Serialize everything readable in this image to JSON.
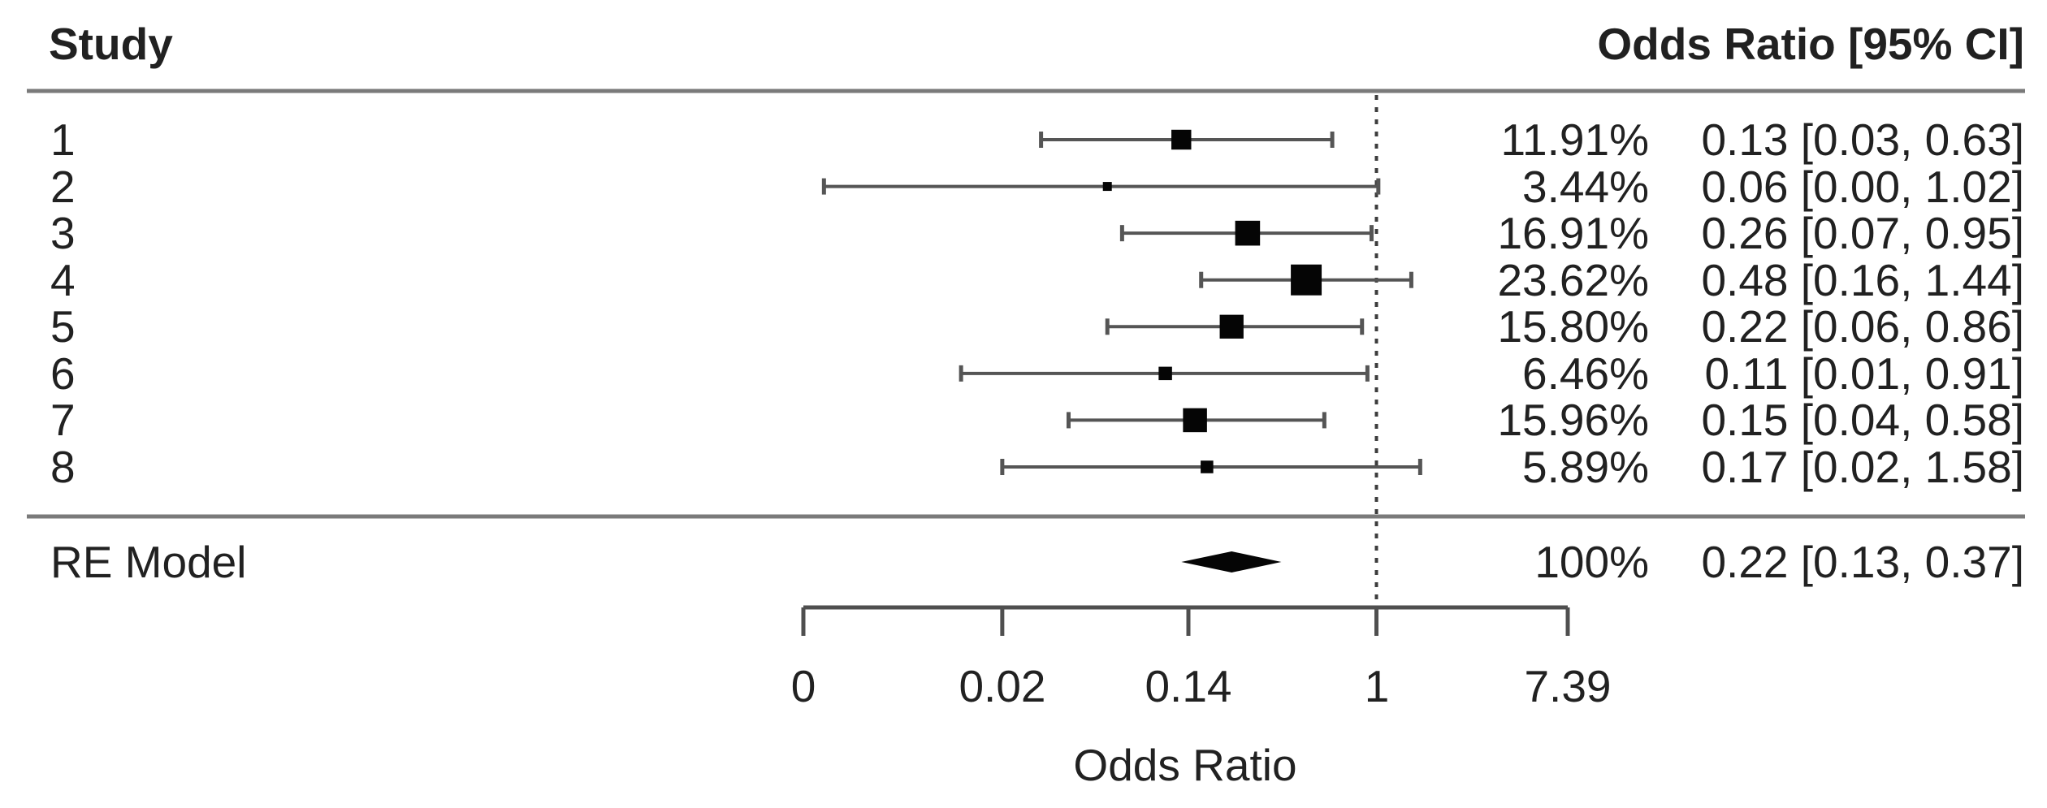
{
  "header": {
    "study": "Study",
    "or_ci": "Odds Ratio [95% CI]"
  },
  "chart_data": {
    "type": "forest",
    "x_scale": "log",
    "xlabel": "Odds Ratio",
    "x_ticks": [
      {
        "label": "0",
        "value": 0.0025
      },
      {
        "label": "0.02",
        "value": 0.02
      },
      {
        "label": "0.14",
        "value": 0.14
      },
      {
        "label": "1",
        "value": 1
      },
      {
        "label": "7.39",
        "value": 7.39
      }
    ],
    "reference_value": 1,
    "studies": [
      {
        "label": "1",
        "weight_pct": "11.91%",
        "weight": 11.91,
        "or": 0.13,
        "ci_low": 0.03,
        "ci_high": 0.63,
        "annotation": "0.13 [0.03, 0.63]"
      },
      {
        "label": "2",
        "weight_pct": "3.44%",
        "weight": 3.44,
        "or": 0.06,
        "ci_low": 0.0,
        "ci_high": 1.02,
        "ci_low_plot": 0.0031,
        "annotation": "0.06 [0.00, 1.02]"
      },
      {
        "label": "3",
        "weight_pct": "16.91%",
        "weight": 16.91,
        "or": 0.26,
        "ci_low": 0.07,
        "ci_high": 0.95,
        "annotation": "0.26 [0.07, 0.95]"
      },
      {
        "label": "4",
        "weight_pct": "23.62%",
        "weight": 23.62,
        "or": 0.48,
        "ci_low": 0.16,
        "ci_high": 1.44,
        "annotation": "0.48 [0.16, 1.44]"
      },
      {
        "label": "5",
        "weight_pct": "15.80%",
        "weight": 15.8,
        "or": 0.22,
        "ci_low": 0.06,
        "ci_high": 0.86,
        "annotation": "0.22 [0.06, 0.86]"
      },
      {
        "label": "6",
        "weight_pct": "6.46%",
        "weight": 6.46,
        "or": 0.11,
        "ci_low": 0.01,
        "ci_high": 0.91,
        "ci_low_plot": 0.013,
        "annotation": "0.11 [0.01, 0.91]"
      },
      {
        "label": "7",
        "weight_pct": "15.96%",
        "weight": 15.96,
        "or": 0.15,
        "ci_low": 0.04,
        "ci_high": 0.58,
        "annotation": "0.15 [0.04, 0.58]"
      },
      {
        "label": "8",
        "weight_pct": "5.89%",
        "weight": 5.89,
        "or": 0.17,
        "ci_low": 0.02,
        "ci_high": 1.58,
        "annotation": "0.17 [0.02, 1.58]"
      }
    ],
    "summary": {
      "label": "RE Model",
      "weight_pct": "100%",
      "or": 0.22,
      "ci_low": 0.13,
      "ci_high": 0.37,
      "annotation": "0.22 [0.13, 0.37]"
    },
    "colors": {
      "text": "#212121",
      "rule": "#7a7a7a",
      "axis": "#4f4f4f",
      "ci_line": "#555555",
      "marker": "#050505",
      "reference_line": "#3c3c3c",
      "background": "#ffffff"
    }
  }
}
